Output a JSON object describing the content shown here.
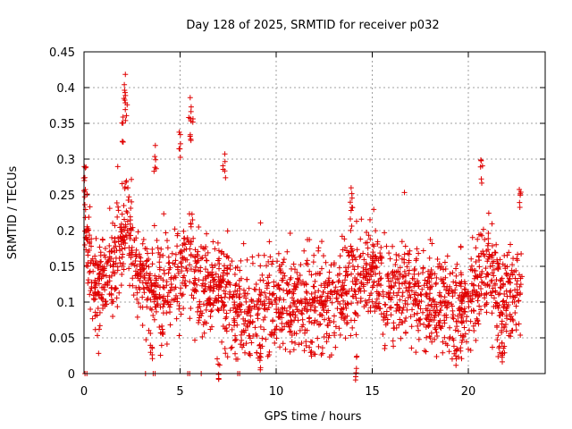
{
  "chart_data": {
    "type": "scatter",
    "title": "Day 128 of 2025, SRMTID for receiver p032",
    "xlabel": "GPS time / hours",
    "ylabel": "SRMTID / TECUs",
    "xlim": [
      0,
      24
    ],
    "ylim": [
      0,
      0.45
    ],
    "xticks": [
      0,
      5,
      10,
      15,
      20
    ],
    "yticks": [
      0,
      0.05,
      0.1,
      0.15,
      0.2,
      0.25,
      0.3,
      0.35,
      0.4,
      0.45
    ],
    "grid": true,
    "marker": "+",
    "marker_color": "#e00000",
    "series": [
      {
        "name": "SRMTID",
        "trend": [
          [
            0.0,
            0.26
          ],
          [
            0.2,
            0.18
          ],
          [
            0.5,
            0.12
          ],
          [
            1.0,
            0.13
          ],
          [
            1.5,
            0.15
          ],
          [
            2.0,
            0.19
          ],
          [
            2.2,
            0.22
          ],
          [
            2.5,
            0.16
          ],
          [
            3.0,
            0.14
          ],
          [
            3.5,
            0.12
          ],
          [
            4.0,
            0.11
          ],
          [
            4.5,
            0.12
          ],
          [
            5.0,
            0.14
          ],
          [
            5.5,
            0.17
          ],
          [
            6.0,
            0.13
          ],
          [
            6.5,
            0.11
          ],
          [
            7.0,
            0.12
          ],
          [
            7.5,
            0.11
          ],
          [
            8.0,
            0.09
          ],
          [
            8.5,
            0.08
          ],
          [
            9.0,
            0.09
          ],
          [
            9.5,
            0.1
          ],
          [
            10.0,
            0.09
          ],
          [
            10.5,
            0.1
          ],
          [
            11.0,
            0.1
          ],
          [
            12.0,
            0.1
          ],
          [
            13.0,
            0.1
          ],
          [
            13.5,
            0.12
          ],
          [
            14.0,
            0.13
          ],
          [
            14.5,
            0.14
          ],
          [
            15.0,
            0.15
          ],
          [
            15.5,
            0.12
          ],
          [
            16.0,
            0.11
          ],
          [
            16.5,
            0.12
          ],
          [
            17.0,
            0.12
          ],
          [
            17.5,
            0.11
          ],
          [
            18.0,
            0.1
          ],
          [
            18.5,
            0.1
          ],
          [
            19.0,
            0.09
          ],
          [
            19.5,
            0.09
          ],
          [
            20.0,
            0.1
          ],
          [
            20.5,
            0.13
          ],
          [
            21.0,
            0.14
          ],
          [
            21.5,
            0.11
          ],
          [
            22.0,
            0.1
          ],
          [
            22.5,
            0.12
          ],
          [
            22.8,
            0.13
          ]
        ],
        "spikes": [
          [
            0.05,
            0.29
          ],
          [
            2.1,
            0.42
          ],
          [
            2.2,
            0.39
          ],
          [
            2.05,
            0.36
          ],
          [
            3.7,
            0.32
          ],
          [
            5.0,
            0.34
          ],
          [
            5.6,
            0.39
          ],
          [
            5.5,
            0.36
          ],
          [
            7.3,
            0.31
          ],
          [
            13.9,
            0.26
          ],
          [
            20.7,
            0.3
          ],
          [
            22.7,
            0.26
          ],
          [
            7.0,
            0.03
          ],
          [
            14.2,
            0.03
          ],
          [
            19.4,
            0.04
          ],
          [
            21.8,
            0.04
          ],
          [
            3.5,
            0.05
          ],
          [
            9.2,
            0.04
          ]
        ],
        "zeros": [
          0.05,
          0.15,
          3.2,
          3.6,
          3.7,
          5.4,
          5.5,
          6.1,
          8.0,
          8.1
        ],
        "count": 2200,
        "spread": 0.035
      }
    ]
  }
}
